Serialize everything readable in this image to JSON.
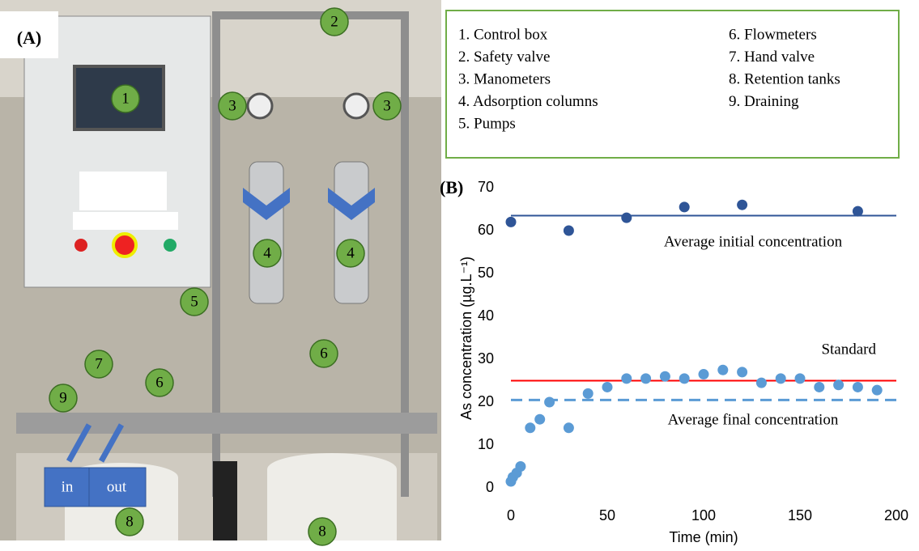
{
  "panel_a": {
    "label": "(A)",
    "markers": [
      "1",
      "2",
      "3",
      "3",
      "4",
      "4",
      "5",
      "6",
      "6",
      "7",
      "9",
      "8",
      "8"
    ],
    "arrows": [
      "in",
      "out"
    ]
  },
  "legend": {
    "items": [
      "1. Control box",
      "2. Safety valve",
      "3. Manometers",
      "4. Adsorption columns",
      "5. Pumps",
      "6. Flowmeters",
      "7. Hand valve",
      "8. Retention tanks",
      "9. Draining"
    ]
  },
  "chart_data": {
    "type": "scatter",
    "panel_label": "(B)",
    "x_label": "Time (min)",
    "y_label": "As concentration (µg.L⁻¹)",
    "series": [
      {
        "color": "#2f5597",
        "x": [
          0,
          30,
          60,
          90,
          120,
          180
        ],
        "values": [
          62,
          60,
          63,
          65.5,
          66,
          64.5
        ]
      },
      {
        "color": "#5b9bd5",
        "x": [
          0,
          1,
          3,
          5,
          10,
          15,
          20,
          30,
          40,
          50,
          60,
          70,
          80,
          90,
          100,
          110,
          120,
          130,
          140,
          150,
          160,
          170,
          180,
          190
        ],
        "values": [
          1.5,
          2.5,
          3.5,
          5,
          14,
          16,
          20,
          14,
          22,
          23.5,
          25.5,
          25.5,
          26,
          25.5,
          26.5,
          27.5,
          27,
          24.5,
          25.5,
          25.5,
          23.5,
          24,
          23.5,
          22.8
        ]
      }
    ],
    "reference_lines": [
      {
        "label": "Average initial concentration",
        "value": 63.5,
        "color": "#2f5597",
        "dashed": false
      },
      {
        "label": "Standard",
        "value": 25,
        "color": "#ff0000",
        "dashed": false
      },
      {
        "label": "Average final concentration",
        "value": 20.5,
        "color": "#5b9bd5",
        "dashed": true
      }
    ],
    "xlim": [
      0,
      200
    ],
    "xticks": [
      0,
      50,
      100,
      150,
      200
    ],
    "ylim": [
      0,
      70
    ],
    "yticks": [
      0,
      10,
      20,
      30,
      40,
      50,
      60,
      70
    ]
  }
}
